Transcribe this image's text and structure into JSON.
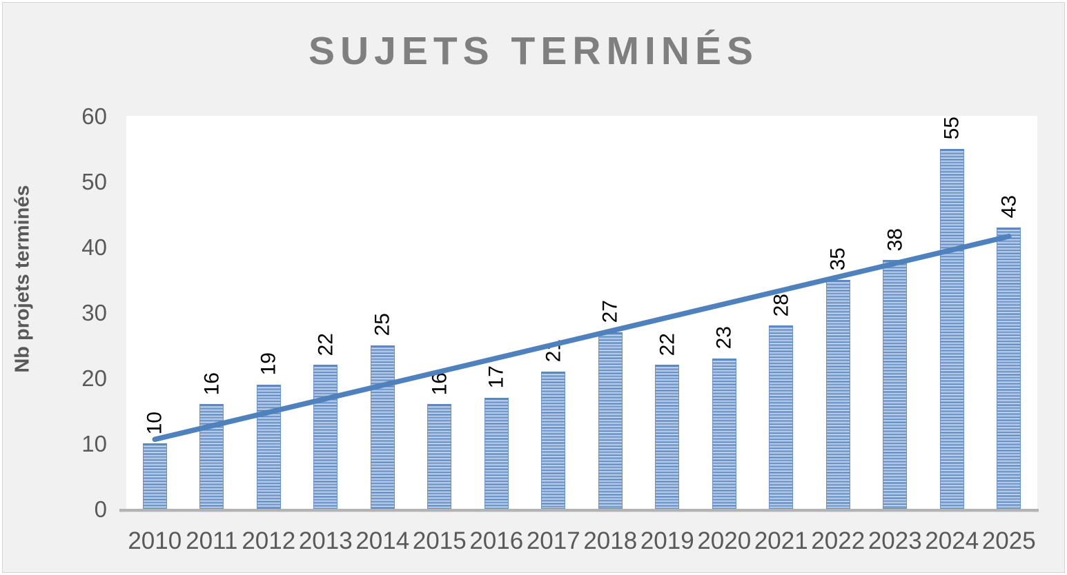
{
  "title": "SUJETS TERMINÉS",
  "colors": {
    "background": "#f1f1f1",
    "plot_background": "#ffffff",
    "title_text": "#7f7f7f",
    "axis_text": "#595959",
    "data_label_text": "#000000",
    "bar_fill": "#84a7d4",
    "bar_stripe_light": "#cddbee",
    "bar_stripe_dark": "#5e88c3",
    "trendline": "#4f81bd",
    "axis_line": "#b3b3b3"
  },
  "chart_data": {
    "type": "bar",
    "title": "SUJETS TERMINÉS",
    "categories": [
      "2010",
      "2011",
      "2012",
      "2013",
      "2014",
      "2015",
      "2016",
      "2017",
      "2018",
      "2019",
      "2020",
      "2021",
      "2022",
      "2023",
      "2024",
      "2025"
    ],
    "values": [
      10,
      16,
      19,
      22,
      25,
      16,
      17,
      21,
      27,
      22,
      23,
      28,
      35,
      38,
      55,
      43
    ],
    "data_labels": [
      "10",
      "16",
      "19",
      "22",
      "25",
      "16",
      "17",
      "21",
      "27",
      "22",
      "23",
      "28",
      "35",
      "38",
      "55",
      "43"
    ],
    "data_label_rotation_deg": -90,
    "xlabel": "",
    "ylabel": "Nb projets terminés",
    "ylim": [
      0,
      60
    ],
    "yticks": [
      0,
      10,
      20,
      30,
      40,
      50,
      60
    ],
    "grid": false,
    "legend": false,
    "trendline": {
      "type": "linear",
      "start_value": 10.6,
      "end_value": 41.6,
      "color": "#4f81bd"
    }
  }
}
